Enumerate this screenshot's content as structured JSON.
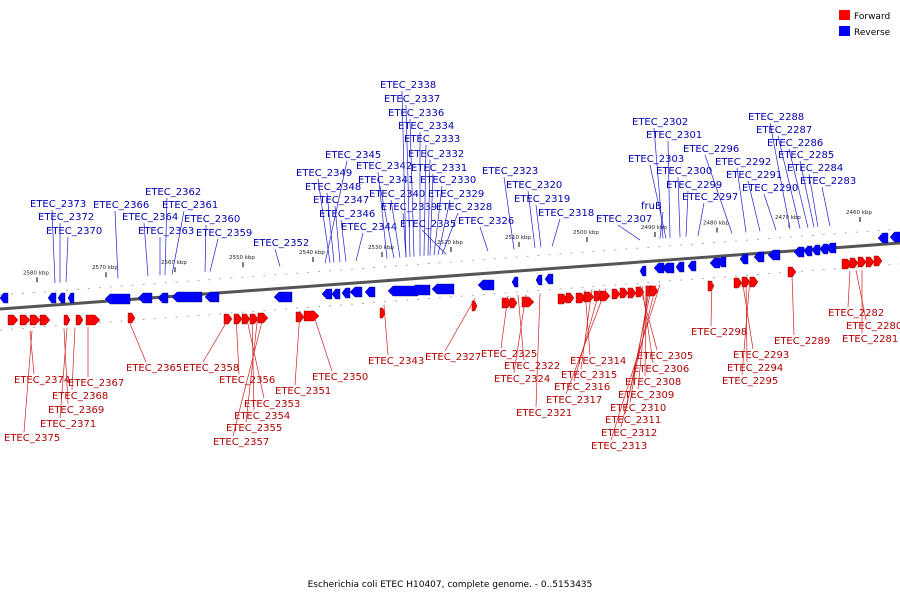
{
  "legend": {
    "forward": "Forward",
    "reverse": "Reverse",
    "forward_color": "#ff0000",
    "reverse_color": "#0000ff"
  },
  "caption": "Escherichia coli ETEC H10407, complete genome. - 0..5153435",
  "kbp": [
    "2580 kbp",
    "2570 kbp",
    "2560 kbp",
    "2550 kbp",
    "2540 kbp",
    "2530 kbp",
    "2520 kbp",
    "2510 kbp",
    "2500 kbp",
    "2490 kbp",
    "2480 kbp",
    "2470 kbp",
    "2460 kbp"
  ],
  "forward": [
    "ETEC_2374",
    "ETEC_2375",
    "ETEC_2369",
    "ETEC_2371",
    "ETEC_2368",
    "ETEC_2367",
    "ETEC_2365",
    "ETEC_2358",
    "ETEC_2356",
    "ETEC_2353",
    "ETEC_2354",
    "ETEC_2355",
    "ETEC_2357",
    "ETEC_2351",
    "ETEC_2350",
    "ETEC_2343",
    "ETEC_2327",
    "ETEC_2325",
    "ETEC_2322",
    "ETEC_2324",
    "ETEC_2321",
    "ETEC_2314",
    "ETEC_2315",
    "ETEC_2316",
    "ETEC_2317",
    "ETEC_2305",
    "ETEC_2306",
    "ETEC_2308",
    "ETEC_2309",
    "ETEC_2310",
    "ETEC_2311",
    "ETEC_2312",
    "ETEC_2313",
    "ETEC_2298",
    "ETEC_2293",
    "ETEC_2294",
    "ETEC_2295",
    "ETEC_2289",
    "ETEC_2282",
    "ETEC_2280",
    "ETEC_2281"
  ],
  "reverse": [
    "ETEC_2373",
    "ETEC_2372",
    "ETEC_2370",
    "ETEC_2366",
    "ETEC_2364",
    "ETEC_2363",
    "ETEC_2362",
    "ETEC_2361",
    "ETEC_2360",
    "ETEC_2359",
    "ETEC_2352",
    "ETEC_2345",
    "ETEC_2349",
    "ETEC_2348",
    "ETEC_2347",
    "ETEC_2346",
    "ETEC_2344",
    "ETEC_2342",
    "ETEC_2341",
    "ETEC_2340",
    "ETEC_2339",
    "ETEC_2338",
    "ETEC_2337",
    "ETEC_2336",
    "ETEC_2334",
    "ETEC_2333",
    "ETEC_2332",
    "ETEC_2331",
    "ETEC_2330",
    "ETEC_2329",
    "ETEC_2328",
    "ETEC_2335",
    "ETEC_2326",
    "ETEC_2323",
    "ETEC_2320",
    "ETEC_2319",
    "ETEC_2318",
    "ETEC_2307",
    "ETEC_2302",
    "ETEC_2301",
    "ETEC_2303",
    "fruB",
    "ETEC_2300",
    "ETEC_2299",
    "ETEC_2297",
    "ETEC_2296",
    "ETEC_2292",
    "ETEC_2291",
    "ETEC_2290",
    "ETEC_2288",
    "ETEC_2287",
    "ETEC_2286",
    "ETEC_2285",
    "ETEC_2284",
    "ETEC_2283"
  ]
}
